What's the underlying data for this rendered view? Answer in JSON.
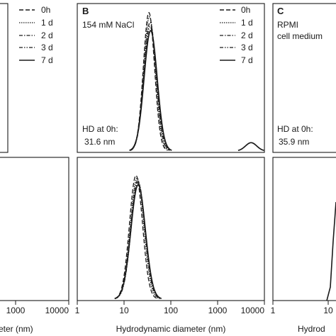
{
  "chart_data": [
    {
      "panel": "A-top",
      "type": "line",
      "xscale": "log",
      "xlim": [
        1,
        10000
      ],
      "x_tick_labels": [],
      "legend": {
        "placement": "top-right",
        "entries": [
          {
            "label": "0h",
            "dash": "dash"
          },
          {
            "label": "1 d",
            "dash": "dot"
          },
          {
            "label": "2 d",
            "dash": "dashdot"
          },
          {
            "label": "3 d",
            "dash": "dashdotdot"
          },
          {
            "label": "7 d",
            "dash": "solid"
          }
        ]
      },
      "series": []
    },
    {
      "panel": "A-bottom",
      "type": "line",
      "xscale": "log",
      "xlim": [
        1,
        10000
      ],
      "x_tick_labels": [
        "1000",
        "10000"
      ],
      "xlabel": "eter (nm)",
      "series": []
    },
    {
      "panel": "B-top",
      "type": "line",
      "panel_letter": "B",
      "title": "154 mM NaCl",
      "xscale": "log",
      "xlim": [
        1,
        10000
      ],
      "ylim": [
        0,
        1.05
      ],
      "annotation": {
        "line1": "HD at 0h:",
        "line2": "31.6 nm"
      },
      "legend": {
        "placement": "top-right",
        "entries": [
          {
            "label": "0h",
            "dash": "dash"
          },
          {
            "label": "1 d",
            "dash": "dot"
          },
          {
            "label": "2 d",
            "dash": "dashdot"
          },
          {
            "label": "3 d",
            "dash": "dashdotdot"
          },
          {
            "label": "7 d",
            "dash": "solid"
          }
        ]
      },
      "series": [
        {
          "dash": "dash",
          "peaks": [
            {
              "mu": 34,
              "sigma_log10": 0.12,
              "amp": 1.0
            }
          ]
        },
        {
          "dash": "dot",
          "peaks": [
            {
              "mu": 35,
              "sigma_log10": 0.125,
              "amp": 0.97
            }
          ]
        },
        {
          "dash": "dashdot",
          "peaks": [
            {
              "mu": 36,
              "sigma_log10": 0.13,
              "amp": 0.93
            }
          ]
        },
        {
          "dash": "dashdotdot",
          "peaks": [
            {
              "mu": 36,
              "sigma_log10": 0.135,
              "amp": 0.9
            }
          ]
        },
        {
          "dash": "solid",
          "peaks": [
            {
              "mu": 37,
              "sigma_log10": 0.14,
              "amp": 0.87
            },
            {
              "mu": 5200,
              "sigma_log10": 0.12,
              "amp": 0.06
            }
          ]
        }
      ]
    },
    {
      "panel": "B-bottom",
      "type": "line",
      "xscale": "log",
      "xlim": [
        1,
        10000
      ],
      "ylim": [
        0,
        1.05
      ],
      "x_tick_labels": [
        "1",
        "10",
        "100",
        "1000",
        "10000"
      ],
      "xlabel": "Hydrodynamic diameter (nm)",
      "series": [
        {
          "dash": "dash",
          "peaks": [
            {
              "mu": 18,
              "sigma_log10": 0.14,
              "amp": 0.93
            }
          ]
        },
        {
          "dash": "dot",
          "peaks": [
            {
              "mu": 19,
              "sigma_log10": 0.145,
              "amp": 0.91
            }
          ]
        },
        {
          "dash": "dashdot",
          "peaks": [
            {
              "mu": 19.5,
              "sigma_log10": 0.15,
              "amp": 0.89
            }
          ]
        },
        {
          "dash": "dashdotdot",
          "peaks": [
            {
              "mu": 20,
              "sigma_log10": 0.15,
              "amp": 0.88
            }
          ]
        },
        {
          "dash": "solid",
          "peaks": [
            {
              "mu": 20,
              "sigma_log10": 0.155,
              "amp": 0.86
            }
          ]
        }
      ]
    },
    {
      "panel": "C-top",
      "type": "line",
      "panel_letter": "C",
      "title_line1": "RPMI",
      "title_line2": "cell medium",
      "annotation": {
        "line1": "HD at 0h:",
        "line2": "35.9 nm"
      },
      "series": []
    },
    {
      "panel": "C-bottom",
      "type": "line",
      "x_tick_labels": [
        "1",
        "10"
      ],
      "xlabel": "Hydrod",
      "series": []
    }
  ]
}
